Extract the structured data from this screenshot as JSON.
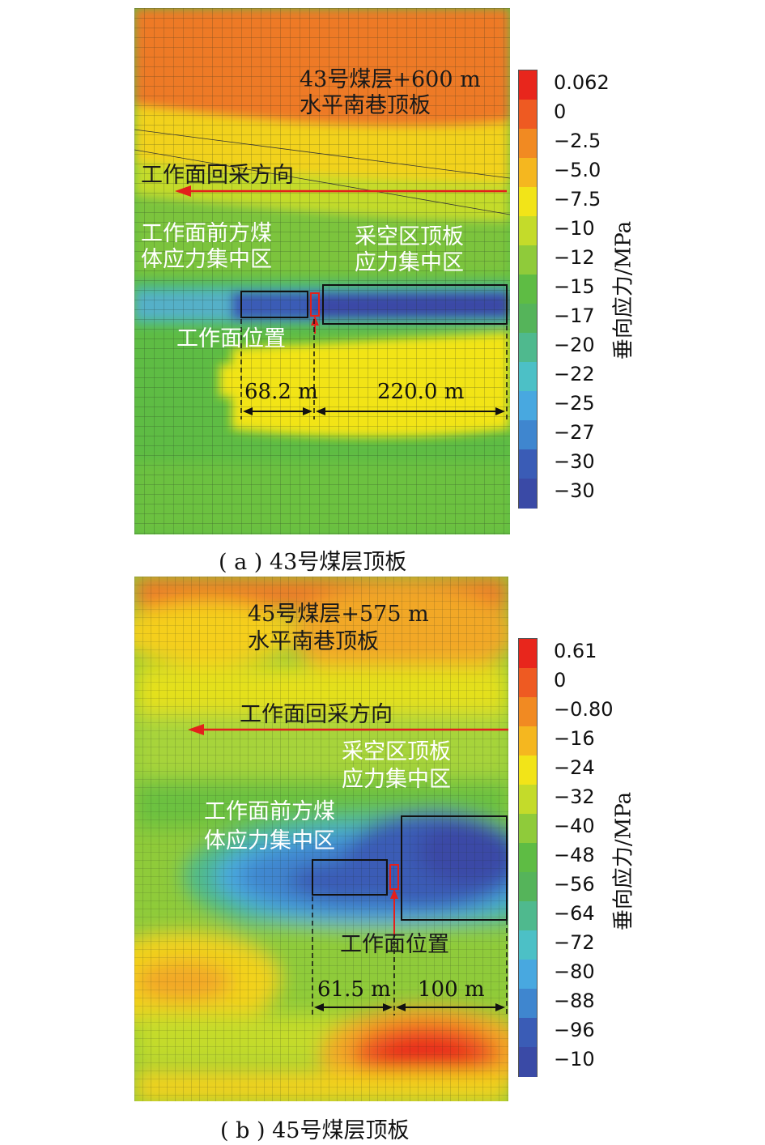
{
  "panel_a": {
    "caption": "( a ) 43号煤层顶板",
    "roadway_label_line1": "43号煤层+600 m",
    "roadway_label_line2": "水平南巷顶板",
    "direction_label": "工作面回采方向",
    "front_zone_line1": "工作面前方煤",
    "front_zone_line2": "体应力集中区",
    "goaf_zone_line1": "采空区顶板",
    "goaf_zone_line2": "应力集中区",
    "face_position_label": "工作面位置",
    "dim_left": "68.2 m",
    "dim_right": "220.0 m",
    "legend_ticks": [
      "0.062",
      "0",
      "−2.5",
      "−5.0",
      "−7.5",
      "−10",
      "−12",
      "−15",
      "−17",
      "−20",
      "−22",
      "−25",
      "−27",
      "−30",
      "−30"
    ],
    "legend_title": "垂向应力/MPa"
  },
  "panel_b": {
    "caption": "( b ) 45号煤层顶板",
    "roadway_label_line1": "45号煤层+575 m",
    "roadway_label_line2": "水平南巷顶板",
    "direction_label": "工作面回采方向",
    "goaf_zone_line1": "采空区顶板",
    "goaf_zone_line2": "应力集中区",
    "front_zone_line1": "工作面前方煤",
    "front_zone_line2": "体应力集中区",
    "face_position_label": "工作面位置",
    "dim_left": "61.5 m",
    "dim_right": "100 m",
    "legend_ticks": [
      "0.61",
      "0",
      "−0.80",
      "−16",
      "−24",
      "−32",
      "−40",
      "−48",
      "−56",
      "−64",
      "−72",
      "−80",
      "−88",
      "−96",
      "−10"
    ],
    "legend_title": "垂向应力/MPa"
  },
  "colors": {
    "scale": [
      "#e8261c",
      "#ee5a22",
      "#f18a22",
      "#f5b71f",
      "#f2e418",
      "#c4db2a",
      "#8fcb3a",
      "#5ebc44",
      "#55b45a",
      "#4fb98e",
      "#4cc0c6",
      "#48a8e0",
      "#3f86cf",
      "#3a5cb6",
      "#3a4aa6"
    ],
    "annotation_red": "#e3201b"
  }
}
